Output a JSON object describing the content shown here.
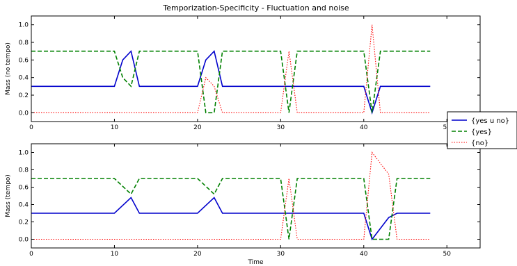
{
  "figure": {
    "title": "Temporization-Specificity - Fluctuation and noise"
  },
  "legend": {
    "placement": "right, between subplots",
    "entries": [
      {
        "label": "{yes u no}",
        "color": "#0000cc",
        "style": "solid"
      },
      {
        "label": "{yes}",
        "color": "#008000",
        "style": "dashed"
      },
      {
        "label": "{no}",
        "color": "#ff0000",
        "style": "dotted"
      }
    ]
  },
  "chart_data": [
    {
      "type": "line",
      "title": "Temporization-Specificity - Fluctuation and noise",
      "xlabel": "",
      "ylabel": "Mass (no tempo)",
      "xlim": [
        0,
        54
      ],
      "ylim": [
        -0.1,
        1.1
      ],
      "xticks": [
        0,
        10,
        20,
        30,
        40,
        50
      ],
      "yticks": [
        0.0,
        0.2,
        0.4,
        0.6,
        0.8,
        1.0
      ],
      "grid": false,
      "series": [
        {
          "name": "{yes u no}",
          "color": "#0000cc",
          "style": "solid",
          "x": [
            0,
            10,
            11,
            12,
            13,
            20,
            21,
            22,
            23,
            30,
            31,
            32,
            40,
            41,
            42,
            48
          ],
          "y": [
            0.3,
            0.3,
            0.6,
            0.7,
            0.3,
            0.3,
            0.6,
            0.7,
            0.3,
            0.3,
            0.3,
            0.3,
            0.3,
            0.0,
            0.3,
            0.3
          ]
        },
        {
          "name": "{yes}",
          "color": "#008000",
          "style": "dashed",
          "x": [
            0,
            10,
            11,
            12,
            13,
            20,
            21,
            22,
            23,
            30,
            31,
            32,
            40,
            41,
            42,
            48
          ],
          "y": [
            0.7,
            0.7,
            0.4,
            0.3,
            0.7,
            0.7,
            0.0,
            0.0,
            0.7,
            0.7,
            0.0,
            0.7,
            0.7,
            0.0,
            0.7,
            0.7
          ]
        },
        {
          "name": "{no}",
          "color": "#ff0000",
          "style": "dotted",
          "x": [
            0,
            20,
            21,
            22,
            23,
            30,
            31,
            32,
            40,
            41,
            42,
            48
          ],
          "y": [
            0.0,
            0.0,
            0.4,
            0.3,
            0.0,
            0.0,
            0.7,
            0.0,
            0.0,
            1.0,
            0.0,
            0.0
          ]
        }
      ]
    },
    {
      "type": "line",
      "title": "",
      "xlabel": "Time",
      "ylabel": "Mass (tempo)",
      "xlim": [
        0,
        54
      ],
      "ylim": [
        -0.1,
        1.1
      ],
      "xticks": [
        0,
        10,
        20,
        30,
        40,
        50
      ],
      "yticks": [
        0.0,
        0.2,
        0.4,
        0.6,
        0.8,
        1.0
      ],
      "grid": false,
      "series": [
        {
          "name": "{yes u no}",
          "color": "#0000cc",
          "style": "solid",
          "x": [
            0,
            10,
            12,
            13,
            20,
            22,
            23,
            30,
            31,
            32,
            40,
            41,
            43,
            44,
            48
          ],
          "y": [
            0.3,
            0.3,
            0.48,
            0.3,
            0.3,
            0.48,
            0.3,
            0.3,
            0.3,
            0.3,
            0.3,
            0.0,
            0.25,
            0.3,
            0.3
          ]
        },
        {
          "name": "{yes}",
          "color": "#008000",
          "style": "dashed",
          "x": [
            0,
            10,
            12,
            13,
            20,
            22,
            23,
            30,
            31,
            32,
            40,
            41,
            43,
            44,
            48
          ],
          "y": [
            0.7,
            0.7,
            0.52,
            0.7,
            0.7,
            0.52,
            0.7,
            0.7,
            0.0,
            0.7,
            0.7,
            0.0,
            0.0,
            0.7,
            0.7
          ]
        },
        {
          "name": "{no}",
          "color": "#ff0000",
          "style": "dotted",
          "x": [
            0,
            30,
            31,
            32,
            40,
            41,
            43,
            44,
            48
          ],
          "y": [
            0.0,
            0.0,
            0.7,
            0.0,
            0.0,
            1.0,
            0.75,
            0.0,
            0.0
          ]
        }
      ]
    }
  ]
}
